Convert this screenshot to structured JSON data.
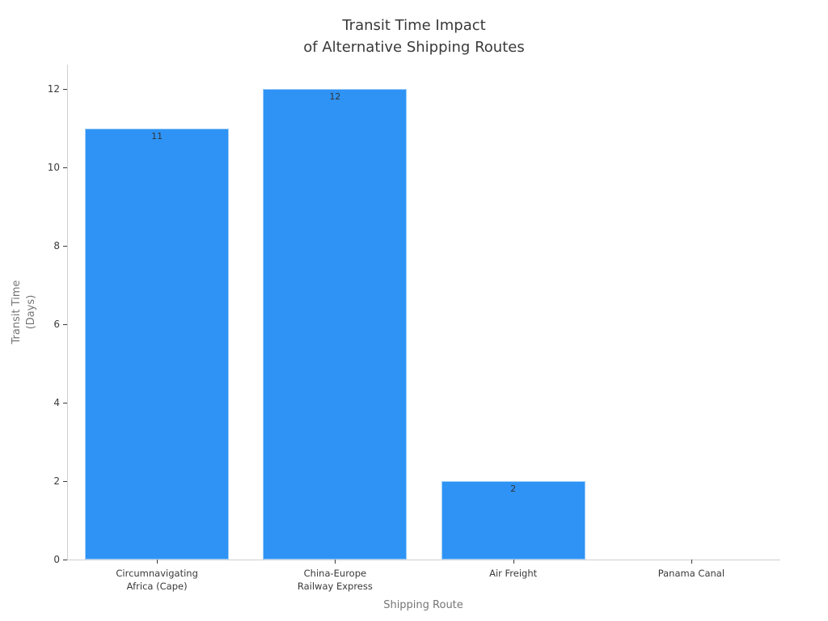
{
  "chart_data": {
    "type": "bar",
    "title": "Transit Time Impact\nof Alternative Shipping Routes",
    "xlabel": "Shipping Route",
    "ylabel": "Transit Time\n(Days)",
    "categories": [
      "Circumnavigating\nAfrica (Cape)",
      "China-Europe\nRailway Express",
      "Air Freight",
      "Panama Canal"
    ],
    "values": [
      11,
      12,
      2,
      0
    ],
    "bar_labels": [
      "11",
      "12",
      "2",
      ""
    ],
    "yticks": [
      0,
      2,
      4,
      6,
      8,
      10,
      12
    ],
    "ylim": [
      0,
      12.62
    ],
    "grid": false,
    "legend": null,
    "bar_color": "#2E93F5",
    "bar_width_fraction": 0.81,
    "axis_line_color": "#cfcfcf",
    "tick_color": "#3a3a3a",
    "title_color": "#3a3a3a",
    "axis_title_color": "#757575"
  }
}
